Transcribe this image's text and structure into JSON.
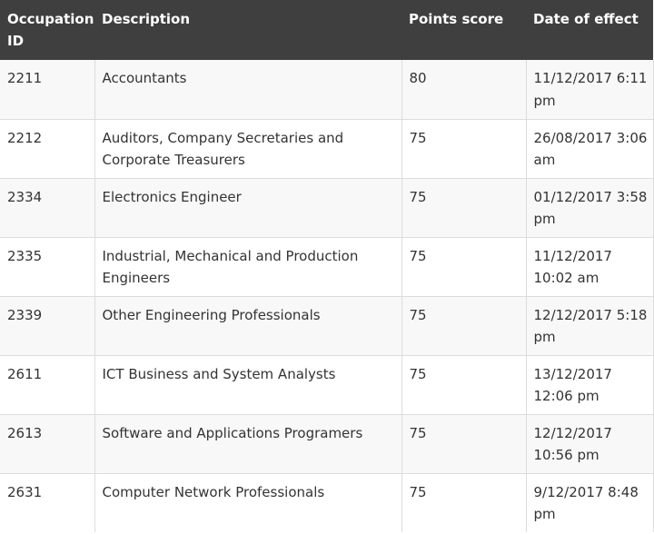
{
  "table": {
    "headers": {
      "id": "Occupation ID",
      "description": "Description",
      "points": "Points score",
      "date": "Date of effect"
    },
    "rows": [
      {
        "id": "2211",
        "description": "Accountants",
        "points": "80",
        "date": "11/12/2017 6:11 pm"
      },
      {
        "id": "2212",
        "description": "Auditors, Company Secretaries and Corporate Treasurers",
        "points": "75",
        "date": "26/08/2017 3:06 am"
      },
      {
        "id": "2334",
        "description": "Electronics Engineer",
        "points": "75",
        "date": "01/12/2017 3:58 pm"
      },
      {
        "id": "2335",
        "description": "Industrial, Mechanical and Production Engineers",
        "points": "75",
        "date": "11/12/2017 10:02 am"
      },
      {
        "id": "2339",
        "description": "Other Engineering Professionals",
        "points": "75",
        "date": "12/12/2017 5:18 pm"
      },
      {
        "id": "2611",
        "description": "ICT Business and System Analysts",
        "points": "75",
        "date": "13/12/2017 12:06 pm"
      },
      {
        "id": "2613",
        "description": "Software and Applications Programers",
        "points": "75",
        "date": "12/12/2017 10:56 pm"
      },
      {
        "id": "2631",
        "description": "Computer Network Professionals",
        "points": "75",
        "date": "9/12/2017 8:48 pm"
      }
    ]
  },
  "colors": {
    "header_bg": "#3f3f3f",
    "header_text": "#ffffff",
    "row_odd": "#f8f8f8",
    "row_even": "#ffffff",
    "border": "#dcdcdc",
    "cell_text": "#333333"
  }
}
